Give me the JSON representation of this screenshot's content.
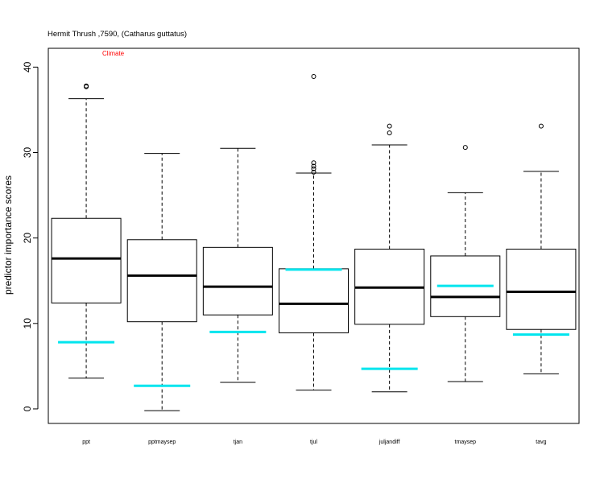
{
  "chart_data": {
    "type": "box",
    "title": "Hermit Thrush ,7590, (Catharus guttatus)",
    "annotation": "Climate",
    "ylabel": "predictor importance scores",
    "xlabel": "",
    "ylim": [
      -1.7,
      42.2
    ],
    "yticks": [
      0,
      10,
      20,
      30,
      40
    ],
    "grid": false,
    "categories": [
      "ppt",
      "pptmaysep",
      "tjan",
      "tjul",
      "juljandiff",
      "tmaysep",
      "tavg"
    ],
    "boxes": [
      {
        "whisker_low": 3.6,
        "q1": 12.4,
        "median": 17.6,
        "q3": 22.3,
        "whisker_high": 36.3,
        "outliers": [
          37.8,
          37.7
        ]
      },
      {
        "whisker_low": -0.2,
        "q1": 10.2,
        "median": 15.6,
        "q3": 19.8,
        "whisker_high": 29.9,
        "outliers": []
      },
      {
        "whisker_low": 3.1,
        "q1": 11.0,
        "median": 14.3,
        "q3": 18.9,
        "whisker_high": 30.5,
        "outliers": []
      },
      {
        "whisker_low": 2.2,
        "q1": 8.9,
        "median": 12.3,
        "q3": 16.4,
        "whisker_high": 27.6,
        "outliers": [
          38.9,
          28.8,
          28.4,
          28.1,
          27.7
        ]
      },
      {
        "whisker_low": 2.0,
        "q1": 9.9,
        "median": 14.2,
        "q3": 18.7,
        "whisker_high": 30.9,
        "outliers": [
          33.1,
          32.3
        ]
      },
      {
        "whisker_low": 3.2,
        "q1": 10.8,
        "median": 13.1,
        "q3": 17.9,
        "whisker_high": 25.3,
        "outliers": [
          30.6
        ]
      },
      {
        "whisker_low": 4.1,
        "q1": 9.3,
        "median": 13.7,
        "q3": 18.7,
        "whisker_high": 27.8,
        "outliers": [
          33.1
        ]
      }
    ],
    "reference_values": [
      7.8,
      2.7,
      9.0,
      16.3,
      4.7,
      14.4,
      8.7
    ],
    "colors": {
      "reference": "#00e5ee",
      "annotation": "#ff0000",
      "box": "#000000"
    }
  }
}
